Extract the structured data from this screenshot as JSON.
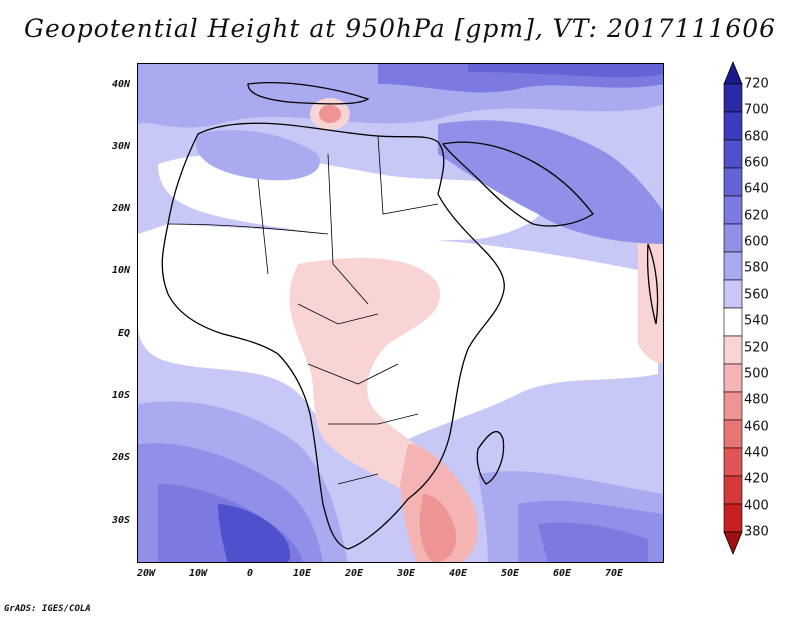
{
  "title": "Geopotential Height at 950hPa [gpm], VT: 2017111606",
  "lat_labels": [
    "40N",
    "30N",
    "20N",
    "10N",
    "EQ",
    "10S",
    "20S",
    "30S"
  ],
  "lon_labels": [
    "20W",
    "10W",
    "0",
    "10E",
    "20E",
    "30E",
    "40E",
    "50E",
    "60E",
    "70E"
  ],
  "colorbar": {
    "levels": [
      "720",
      "700",
      "680",
      "660",
      "640",
      "620",
      "600",
      "580",
      "560",
      "540",
      "520",
      "500",
      "480",
      "460",
      "440",
      "420",
      "400",
      "380"
    ],
    "colors": [
      "#1a1a8c",
      "#2a2aa6",
      "#3c3cbf",
      "#5050cc",
      "#6464d6",
      "#7a7ae0",
      "#9090e8",
      "#aaaaf0",
      "#c8c8f6",
      "#ffffff",
      "#f9d4d4",
      "#f4b4b4",
      "#ee9494",
      "#e87474",
      "#e05656",
      "#d43a3a",
      "#c82020",
      "#a01010"
    ]
  },
  "footer": "GrADS: IGES/COLA",
  "colors": {
    "frame": "#000000",
    "text": "#111111"
  }
}
